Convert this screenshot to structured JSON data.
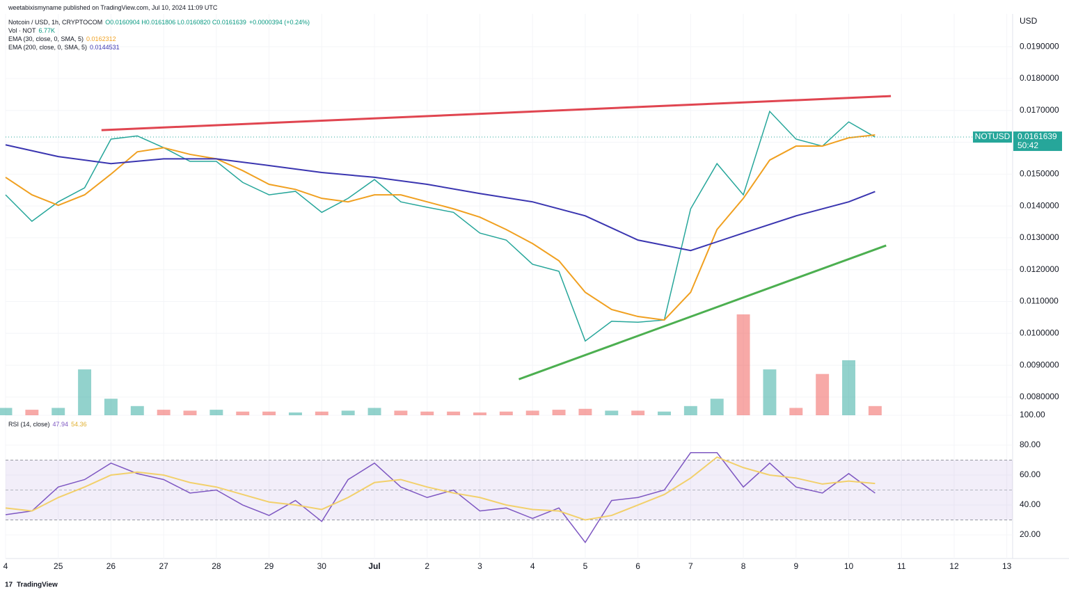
{
  "header": {
    "published": "weetabixismyname published on TradingView.com, Jul 10, 2024 11:09 UTC",
    "logo": "TradingView"
  },
  "chart_data": [
    {
      "type": "line",
      "title": "Notcoin / USD, 1h, CRYPTOCOM",
      "ohlc": "O0.0160904 H0.0161806 L0.0160820 C0.0161639",
      "change": "+0.0000394 (+0.24%)",
      "axis_label": "USD",
      "x": [
        0,
        0.5,
        1,
        1.5,
        2,
        2.5,
        3,
        3.5,
        4,
        4.5,
        5,
        5.5,
        6,
        6.5,
        7,
        7.5,
        8,
        8.5,
        9,
        9.5,
        10,
        10.5,
        11,
        11.5,
        12,
        12.5,
        13,
        13.5,
        14,
        14.5,
        15,
        15.5,
        16,
        16.5
      ],
      "xlim": [
        0,
        19.11
      ],
      "xticks": [
        {
          "value": 0,
          "label": "4"
        },
        {
          "value": 1,
          "label": "25"
        },
        {
          "value": 2,
          "label": "26"
        },
        {
          "value": 3,
          "label": "27"
        },
        {
          "value": 4,
          "label": "28"
        },
        {
          "value": 5,
          "label": "29"
        },
        {
          "value": 6,
          "label": "30"
        },
        {
          "value": 7,
          "label": "Jul"
        },
        {
          "value": 8,
          "label": "2"
        },
        {
          "value": 9,
          "label": "3"
        },
        {
          "value": 10,
          "label": "4"
        },
        {
          "value": 11,
          "label": "5"
        },
        {
          "value": 12,
          "label": "6"
        },
        {
          "value": 13,
          "label": "7"
        },
        {
          "value": 14,
          "label": "8"
        },
        {
          "value": 15,
          "label": "9"
        },
        {
          "value": 16,
          "label": "10"
        },
        {
          "value": 17,
          "label": "11"
        },
        {
          "value": 18,
          "label": "12"
        },
        {
          "value": 19,
          "label": "13"
        }
      ],
      "ylim": [
        0.00743,
        0.02003
      ],
      "yticks": [
        {
          "value": 0.008,
          "label": "0.0080000"
        },
        {
          "value": 0.009,
          "label": "0.0090000"
        },
        {
          "value": 0.01,
          "label": "0.0100000"
        },
        {
          "value": 0.011,
          "label": "0.0110000"
        },
        {
          "value": 0.012,
          "label": "0.0120000"
        },
        {
          "value": 0.013,
          "label": "0.0130000"
        },
        {
          "value": 0.014,
          "label": "0.0140000"
        },
        {
          "value": 0.015,
          "label": "0.0150000"
        },
        {
          "value": 0.016,
          "label": "0.0160000"
        },
        {
          "value": 0.017,
          "label": "0.0170000"
        },
        {
          "value": 0.018,
          "label": "0.0180000"
        },
        {
          "value": 0.019,
          "label": "0.0190000"
        }
      ],
      "series": [
        {
          "name": "Notcoin / USD",
          "color": "#26a69a",
          "values": [
            0.01435,
            0.01352,
            0.01413,
            0.01457,
            0.0161,
            0.0162,
            0.01583,
            0.0154,
            0.0154,
            0.01474,
            0.01435,
            0.01446,
            0.0138,
            0.01424,
            0.01483,
            0.01413,
            0.01396,
            0.0138,
            0.01315,
            0.01293,
            0.01217,
            0.01195,
            0.00976,
            0.01038,
            0.01035,
            0.01042,
            0.01391,
            0.01533,
            0.01435,
            0.01697,
            0.0161,
            0.01588,
            0.01664,
            0.0161639
          ]
        },
        {
          "name": "EMA (30, close, 0, SMA, 5)",
          "last_label": "0.0162312",
          "color": "#f0a020",
          "values": [
            0.0149,
            0.01435,
            0.01402,
            0.01435,
            0.015,
            0.0157,
            0.01583,
            0.01562,
            0.01548,
            0.01511,
            0.01468,
            0.01452,
            0.01424,
            0.01413,
            0.01435,
            0.01435,
            0.01413,
            0.01391,
            0.01365,
            0.01326,
            0.01282,
            0.01228,
            0.01129,
            0.01075,
            0.01053,
            0.01042,
            0.01129,
            0.01326,
            0.01424,
            0.01544,
            0.01588,
            0.01588,
            0.01614,
            0.0162312
          ]
        },
        {
          "name": "EMA (200, close, 0, SMA, 5)",
          "last_label": "0.0144531",
          "color": "#3a35b0",
          "x": [
            0,
            1,
            2,
            3,
            4,
            5,
            6,
            7,
            8,
            9,
            10,
            11,
            12,
            13,
            14,
            15,
            16,
            16.5
          ],
          "values": [
            0.01592,
            0.01555,
            0.01533,
            0.01548,
            0.01548,
            0.01527,
            0.01505,
            0.0149,
            0.01468,
            0.01439,
            0.01413,
            0.01369,
            0.01293,
            0.0126,
            0.01315,
            0.01369,
            0.01413,
            0.0144531
          ]
        }
      ],
      "volume": {
        "name": "Vol · NOT",
        "last_label": "6.77K",
        "values": [
          8,
          6,
          8,
          50,
          18,
          10,
          6,
          5,
          6,
          4,
          4,
          3,
          4,
          5,
          8,
          5,
          4,
          4,
          3,
          4,
          5,
          6,
          7,
          5,
          5,
          4,
          10,
          18,
          110,
          50,
          8,
          45,
          60,
          10
        ]
      },
      "trendlines": [
        {
          "color": "#e04550",
          "x": [
            1.82,
            16.8
          ],
          "values": [
            0.01638,
            0.01745
          ]
        },
        {
          "color": "#4caf50",
          "x": [
            9.74,
            16.71
          ],
          "values": [
            0.00856,
            0.01276
          ]
        }
      ],
      "last_price": {
        "symbol": "NOTUSD",
        "value": 0.0161639,
        "label": "0.0161639",
        "countdown": "50:42",
        "color": "#26a69a"
      }
    },
    {
      "type": "line",
      "title": "RSI (14, close)",
      "x": [
        0,
        0.5,
        1,
        1.5,
        2,
        2.5,
        3,
        3.5,
        4,
        4.5,
        5,
        5.5,
        6,
        6.5,
        7,
        7.5,
        8,
        8.5,
        9,
        9.5,
        10,
        10.5,
        11,
        11.5,
        12,
        12.5,
        13,
        13.5,
        14,
        14.5,
        15,
        15.5,
        16,
        16.5
      ],
      "ylim": [
        4.2,
        100
      ],
      "yticks": [
        {
          "value": 20,
          "label": "20.00"
        },
        {
          "value": 40,
          "label": "40.00"
        },
        {
          "value": 60,
          "label": "60.00"
        },
        {
          "value": 80,
          "label": "80.00"
        },
        {
          "value": 100,
          "label": "100.00"
        }
      ],
      "bands": [
        30,
        70
      ],
      "midline": 50,
      "series": [
        {
          "last_label": "47.94",
          "color": "#7e57c2",
          "values": [
            33.5,
            36,
            52,
            57,
            68,
            61,
            57,
            48,
            50,
            40,
            33,
            43,
            29,
            57,
            68,
            52,
            45,
            50,
            36,
            38,
            31,
            38,
            15,
            43,
            45,
            50,
            75,
            75,
            52,
            68,
            52,
            48,
            61,
            47.94
          ]
        },
        {
          "last_label": "54.36",
          "color": "#f2d06b",
          "values": [
            38,
            36,
            45,
            52,
            60,
            62,
            60,
            55,
            52,
            47,
            42,
            40,
            37,
            45,
            55,
            57,
            52,
            48,
            45,
            40,
            37,
            36,
            30,
            33,
            40,
            47,
            58,
            72,
            65,
            60,
            58,
            54,
            56,
            54.36
          ]
        }
      ]
    }
  ]
}
